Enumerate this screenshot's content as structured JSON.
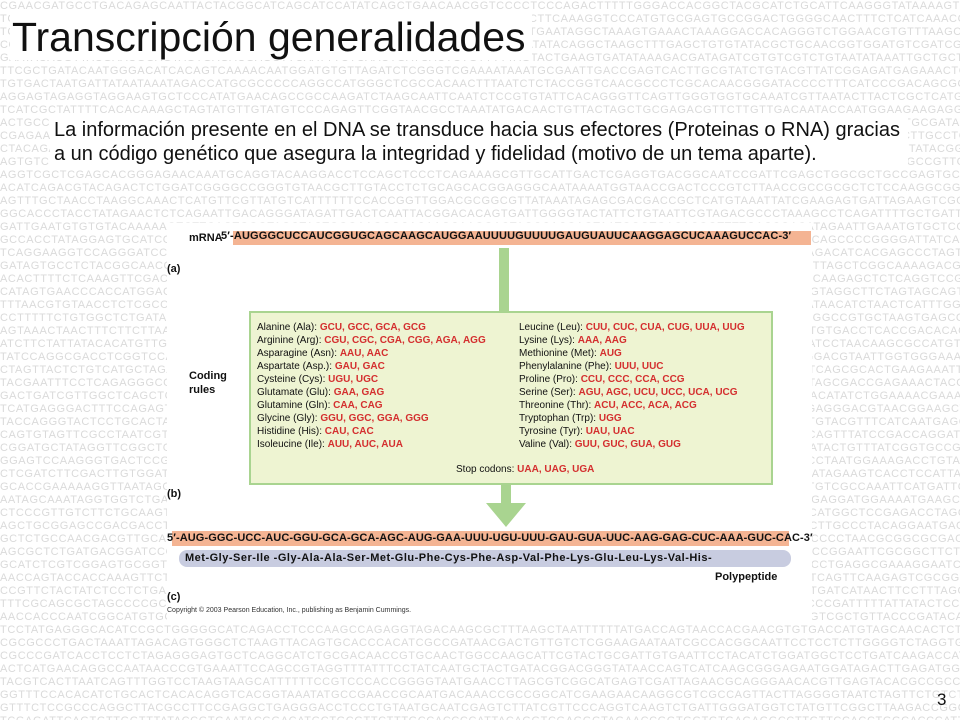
{
  "slide": {
    "title": "Transcripción generalidades",
    "intro": "La información presente en el DNA se transduce hacia sus efectores (Proteinas o RNA) gracias a un código genético que asegura la integridad y fidelidad (motivo de un tema aparte).",
    "page_number": "3"
  },
  "figure": {
    "mrna_label": "mRNA",
    "mrna_sequence": "5′-AUGGGCUCCAUCGGUGCAGCAAGCAUGGAAUUUUGUUUUGAUGUAUUCAAGGAGCUCAAAGUCCAC-3′",
    "label_a": "(a)",
    "label_b": "(b)",
    "label_c": "(c)",
    "coding_label_1": "Coding",
    "coding_label_2": "rules",
    "codes_left": [
      {
        "aa": "Alanine (Ala):",
        "codons": "GCU, GCC, GCA, GCG"
      },
      {
        "aa": "Arginine (Arg):",
        "codons": "CGU, CGC, CGA, CGG, AGA, AGG"
      },
      {
        "aa": "Asparagine (Asn):",
        "codons": "AAU, AAC"
      },
      {
        "aa": "Aspartate (Asp.):",
        "codons": "GAU, GAC"
      },
      {
        "aa": "Cysteine (Cys):",
        "codons": "UGU, UGC"
      },
      {
        "aa": "Glutamate (Glu):",
        "codons": "GAA, GAG"
      },
      {
        "aa": "Glutamine (Gln):",
        "codons": "CAA, CAG"
      },
      {
        "aa": "Glycine (Gly):",
        "codons": "GGU, GGC,  GGA, GGG"
      },
      {
        "aa": "Histidine (His):",
        "codons": "CAU, CAC"
      },
      {
        "aa": "Isoleucine (Ile):",
        "codons": "AUU, AUC, AUA"
      }
    ],
    "codes_right": [
      {
        "aa": "Leucine (Leu):",
        "codons": "CUU, CUC, CUA, CUG, UUA, UUG"
      },
      {
        "aa": "Lysine (Lys):",
        "codons": "AAA, AAG"
      },
      {
        "aa": "Methionine (Met):",
        "codons": "AUG"
      },
      {
        "aa": "Phenylalanine (Phe):",
        "codons": "UUU, UUC"
      },
      {
        "aa": "Proline (Pro):",
        "codons": "CCU, CCC, CCA, CCG"
      },
      {
        "aa": "Serine (Ser):",
        "codons": "AGU, AGC, UCU, UCC, UCA, UCG"
      },
      {
        "aa": "Threonine (Thr):",
        "codons": "ACU, ACC, ACA, ACG"
      },
      {
        "aa": "Tryptophan (Trp):",
        "codons": "UGG"
      },
      {
        "aa": "Tyrosine (Tyr):",
        "codons": "UAU, UAC"
      },
      {
        "aa": "Valine (Val):",
        "codons": "GUU, GUC, GUA, GUG"
      }
    ],
    "stop_label": "Stop codons:",
    "stop_codons": "UAA, UAG, UGA",
    "dna_sequence": "5′-AUG-GGC-UCC-AUC-GGU-GCA-GCA-AGC-AUG-GAA-UUU-UGU-UUU-GAU-GUA-UUC-AAG-GAG-CUC-AAA-GUC-CAC-3′",
    "peptide_sequence": "Met-Gly-Ser-Ile -Gly-Ala-Ala-Ser-Met-Glu-Phe-Cys-Phe-Asp-Val-Phe-Lys-Glu-Leu-Lys-Val-His-",
    "polypeptide_label": "Polypeptide",
    "copyright": "Copyright © 2003 Pearson Education, Inc., publishing as Benjamin Cummings."
  },
  "colors": {
    "mrna_strip": "#f4b493",
    "arrow": "#a9d490",
    "codons": "#d42f2f",
    "codebox_bg": "#eef4d2",
    "peptide_strip": "#c8cce0"
  }
}
